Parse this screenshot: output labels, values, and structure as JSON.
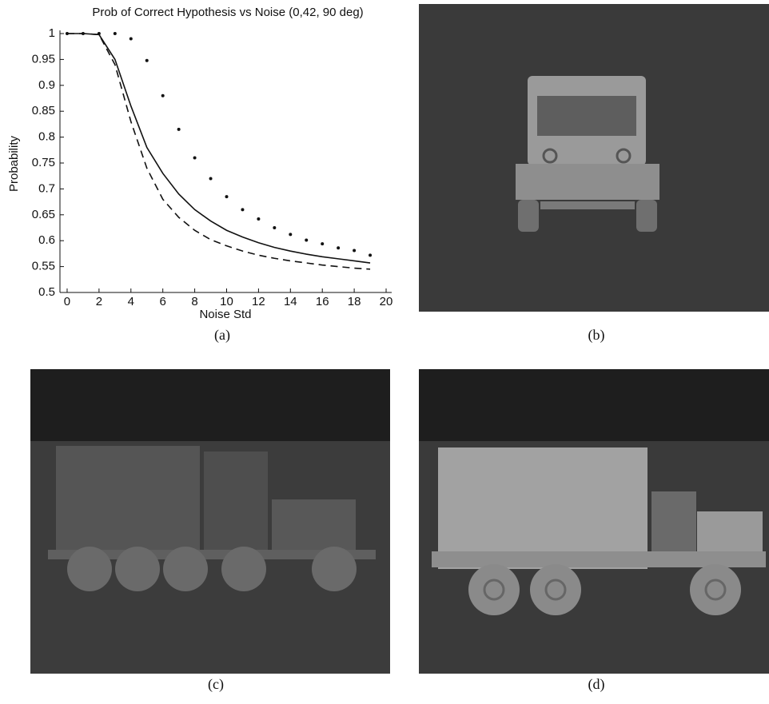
{
  "chart_data": {
    "type": "line",
    "title": "Prob of Correct Hypothesis vs Noise (0,42, 90 deg)",
    "xlabel": "Noise Std",
    "ylabel": "Probability",
    "x": [
      0,
      1,
      2,
      3,
      4,
      5,
      6,
      7,
      8,
      9,
      10,
      11,
      12,
      13,
      14,
      15,
      16,
      17,
      18,
      19
    ],
    "series": [
      {
        "color": "#111111",
        "style": "solid",
        "values": [
          1,
          1,
          0.998,
          0.95,
          0.86,
          0.78,
          0.73,
          0.69,
          0.66,
          0.638,
          0.62,
          0.607,
          0.596,
          0.587,
          0.58,
          0.574,
          0.569,
          0.565,
          0.561,
          0.557
        ]
      },
      {
        "color": "#111111",
        "style": "dashed",
        "values": [
          1,
          1,
          0.998,
          0.94,
          0.83,
          0.74,
          0.68,
          0.645,
          0.62,
          0.602,
          0.59,
          0.58,
          0.572,
          0.566,
          0.561,
          0.557,
          0.553,
          0.55,
          0.547,
          0.545
        ]
      },
      {
        "color": "#111111",
        "style": "dotted",
        "values": [
          1,
          1,
          1,
          1,
          0.99,
          0.948,
          0.88,
          0.815,
          0.76,
          0.72,
          0.685,
          0.66,
          0.642,
          0.625,
          0.612,
          0.601,
          0.594,
          0.586,
          0.581,
          0.572
        ]
      }
    ],
    "xlim": [
      -0.45,
      20.35
    ],
    "ylim": [
      0.5,
      1
    ],
    "xticks": [
      0,
      2,
      4,
      6,
      8,
      10,
      12,
      14,
      16,
      18,
      20
    ],
    "yticks": [
      0.5,
      0.55,
      0.6,
      0.65,
      0.7,
      0.75,
      0.8,
      0.85,
      0.9,
      0.95,
      1
    ]
  },
  "captions": [
    "(a)",
    "(b)",
    "(c)",
    "(d)"
  ]
}
